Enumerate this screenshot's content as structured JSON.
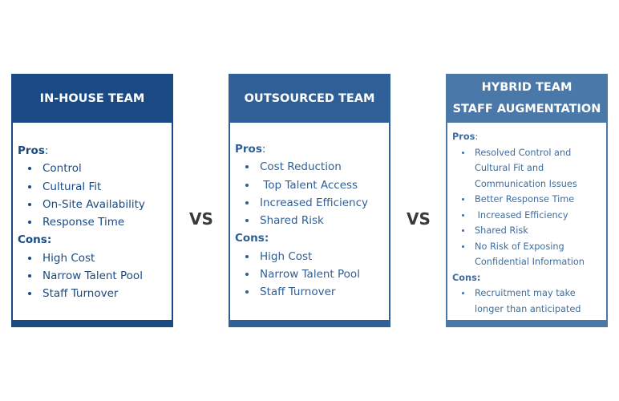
{
  "cards": [
    {
      "title": "IN-HOUSE TEAM",
      "pros_label": "Pros",
      "pros": [
        "Control",
        "Cultural Fit",
        "On-Site Availability",
        "Response Time"
      ],
      "cons_label": "Cons:",
      "cons": [
        "High Cost",
        "Narrow Talent Pool",
        "Staff Turnover"
      ]
    },
    {
      "title": "OUTSOURCED TEAM",
      "pros_label": "Pros",
      "pros": [
        "Cost Reduction",
        " Top Talent Access",
        "Increased Efficiency",
        "Shared Risk"
      ],
      "cons_label": "Cons:",
      "cons": [
        "High Cost",
        "Narrow Talent Pool",
        "Staff Turnover"
      ]
    },
    {
      "title_line1": "HYBRID TEAM",
      "title_line2": "STAFF AUGMENTATION",
      "pros_label": "Pros",
      "pros": [
        "Resolved Control and Cultural Fit and Communication Issues",
        "Better Response Time",
        " Increased Efficiency",
        "Shared Risk",
        "No Risk of Exposing Confidential Information"
      ],
      "cons_label": "Cons:",
      "cons": [
        "Recruitment may take longer than anticipated"
      ]
    }
  ],
  "vs_label": "VS",
  "colors": {
    "card1": "#1a4a84",
    "card2": "#2e5f96",
    "card3": "#4a78a8",
    "vs": "#3a3a3a"
  }
}
